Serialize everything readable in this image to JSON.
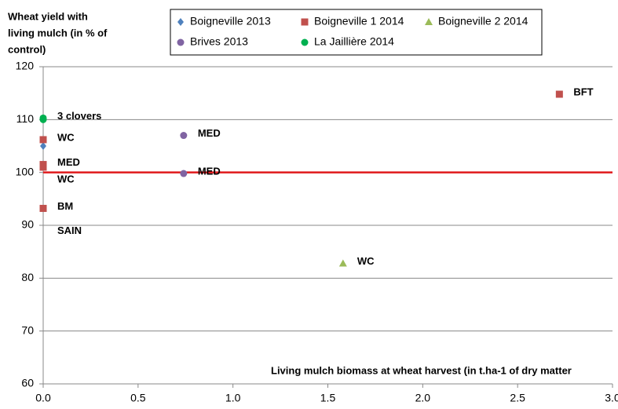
{
  "chart_data": {
    "type": "scatter",
    "ylabel": [
      "Wheat yield with",
      "living mulch (in % of",
      "control)"
    ],
    "xlabel": "Living mulch biomass at wheat harvest (in t.ha-1 of dry matter",
    "xlim": [
      0,
      3
    ],
    "ylim": [
      60,
      120
    ],
    "xticks": [
      {
        "value": 0,
        "label": "0.0"
      },
      0.5,
      {
        "value": 1,
        "label": "1.0"
      },
      1.5,
      {
        "value": 2,
        "label": "2.0"
      },
      2.5,
      {
        "value": 3,
        "label": "3.0"
      }
    ],
    "yticks": [
      60,
      70,
      80,
      90,
      100,
      110,
      120
    ],
    "grid": true,
    "reference_line": {
      "value": 100,
      "color": "#e0191c"
    },
    "series": [
      {
        "name": "Boigneville 2013",
        "color": "#4f81bd",
        "marker": "diamond",
        "x": [
          0
        ],
        "values": [
          105
        ]
      },
      {
        "name": "Boigneville 1 2014",
        "color": "#c0504d",
        "marker": "square",
        "x": [
          0,
          0,
          0,
          0,
          2.72
        ],
        "values": [
          106.2,
          101.5,
          101,
          93.2,
          114.8
        ],
        "labels": [
          "WC",
          "MED",
          "WC",
          "BM",
          "BFT"
        ]
      },
      {
        "name": "Boigneville 2 2014",
        "color": "#9bbb59",
        "marker": "triangle",
        "x": [
          1.58
        ],
        "values": [
          82.8
        ],
        "labels": [
          "WC"
        ]
      },
      {
        "name": "Brives 2013",
        "color": "#8064a2",
        "marker": "circle",
        "x": [
          0.74,
          0.74
        ],
        "values": [
          107,
          99.8
        ],
        "labels": [
          "MED",
          "MED"
        ]
      },
      {
        "name": "La Jaillière 2014",
        "color": "#00b050",
        "marker": "circle",
        "x": [
          0,
          0
        ],
        "values": [
          110.3,
          110
        ],
        "labels": [
          "3 clovers",
          "SAIN"
        ]
      }
    ]
  }
}
